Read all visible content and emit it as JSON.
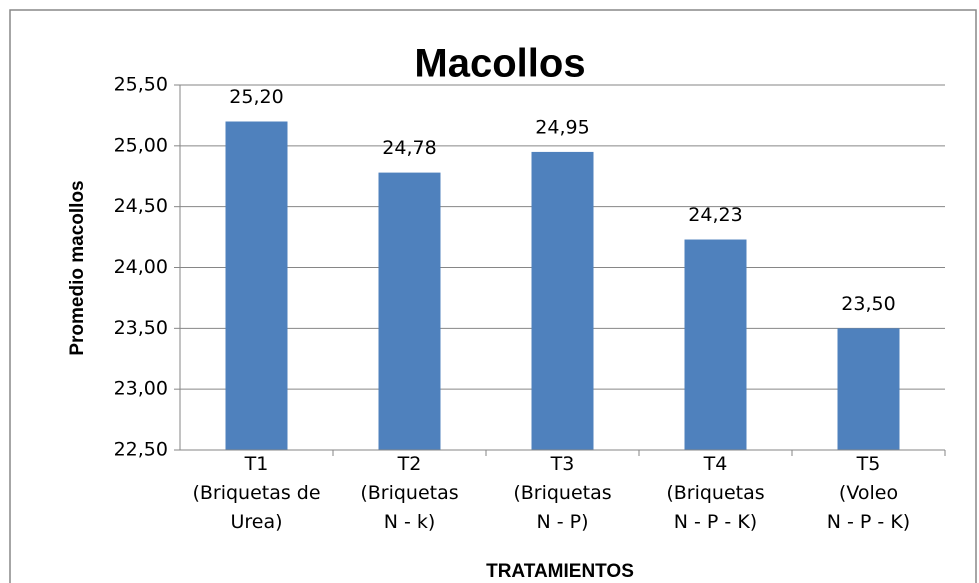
{
  "chart_data": {
    "type": "bar",
    "title": "Macollos",
    "categories": [
      "T1\n(Briquetas de\nUrea)",
      "T2\n(Briquetas\nN - k)",
      "T3\n(Briquetas\nN - P)",
      "T4\n(Briquetas\nN - P - K)",
      "T5\n(Voleo\nN - P - K)"
    ],
    "values": [
      25.2,
      24.78,
      24.95,
      24.23,
      23.5
    ],
    "value_labels": [
      "25,20",
      "24,78",
      "24,95",
      "24,23",
      "23,50"
    ],
    "color": "#4f81bd",
    "ylim": [
      22.5,
      25.5
    ],
    "yticks": [
      {
        "value": 22.5,
        "label": "22,50"
      },
      {
        "value": 23,
        "label": "23,00"
      },
      {
        "value": 23.5,
        "label": "23,50"
      },
      {
        "value": 24,
        "label": "24,00"
      },
      {
        "value": 24.5,
        "label": "24,50"
      },
      {
        "value": 25,
        "label": "25,00"
      },
      {
        "value": 25.5,
        "label": "25,50"
      }
    ],
    "y_label": "Promedio macollos",
    "x_label": "TRATAMIENTOS",
    "grid": true
  }
}
